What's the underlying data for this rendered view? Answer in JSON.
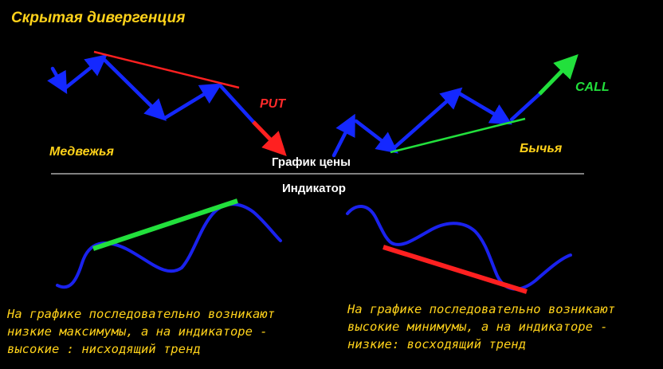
{
  "title": "Скрытая дивергенция",
  "bearish_label": "Медвежья",
  "bullish_label": "Бычья",
  "put_label": "PUT",
  "call_label": "CALL",
  "price_chart_label": "График цены",
  "indicator_label": "Индикатор",
  "left_description": [
    "На графике последовательно возникают",
    "низкие максимумы, а на индикаторе -",
    "высокие : нисходящий тренд"
  ],
  "right_description": [
    "На графике последовательно возникают",
    "высокие минимумы, а на индикаторе -",
    "низкие: восходящий тренд"
  ],
  "colors": {
    "background": "#000000",
    "text_yellow": "#ffd21a",
    "price_arrow_blue": "#1428ff",
    "indicator_blue": "#1a22ee",
    "bearish_red": "#ff2020",
    "bullish_green": "#22e03c",
    "divider": "#ffffff"
  }
}
